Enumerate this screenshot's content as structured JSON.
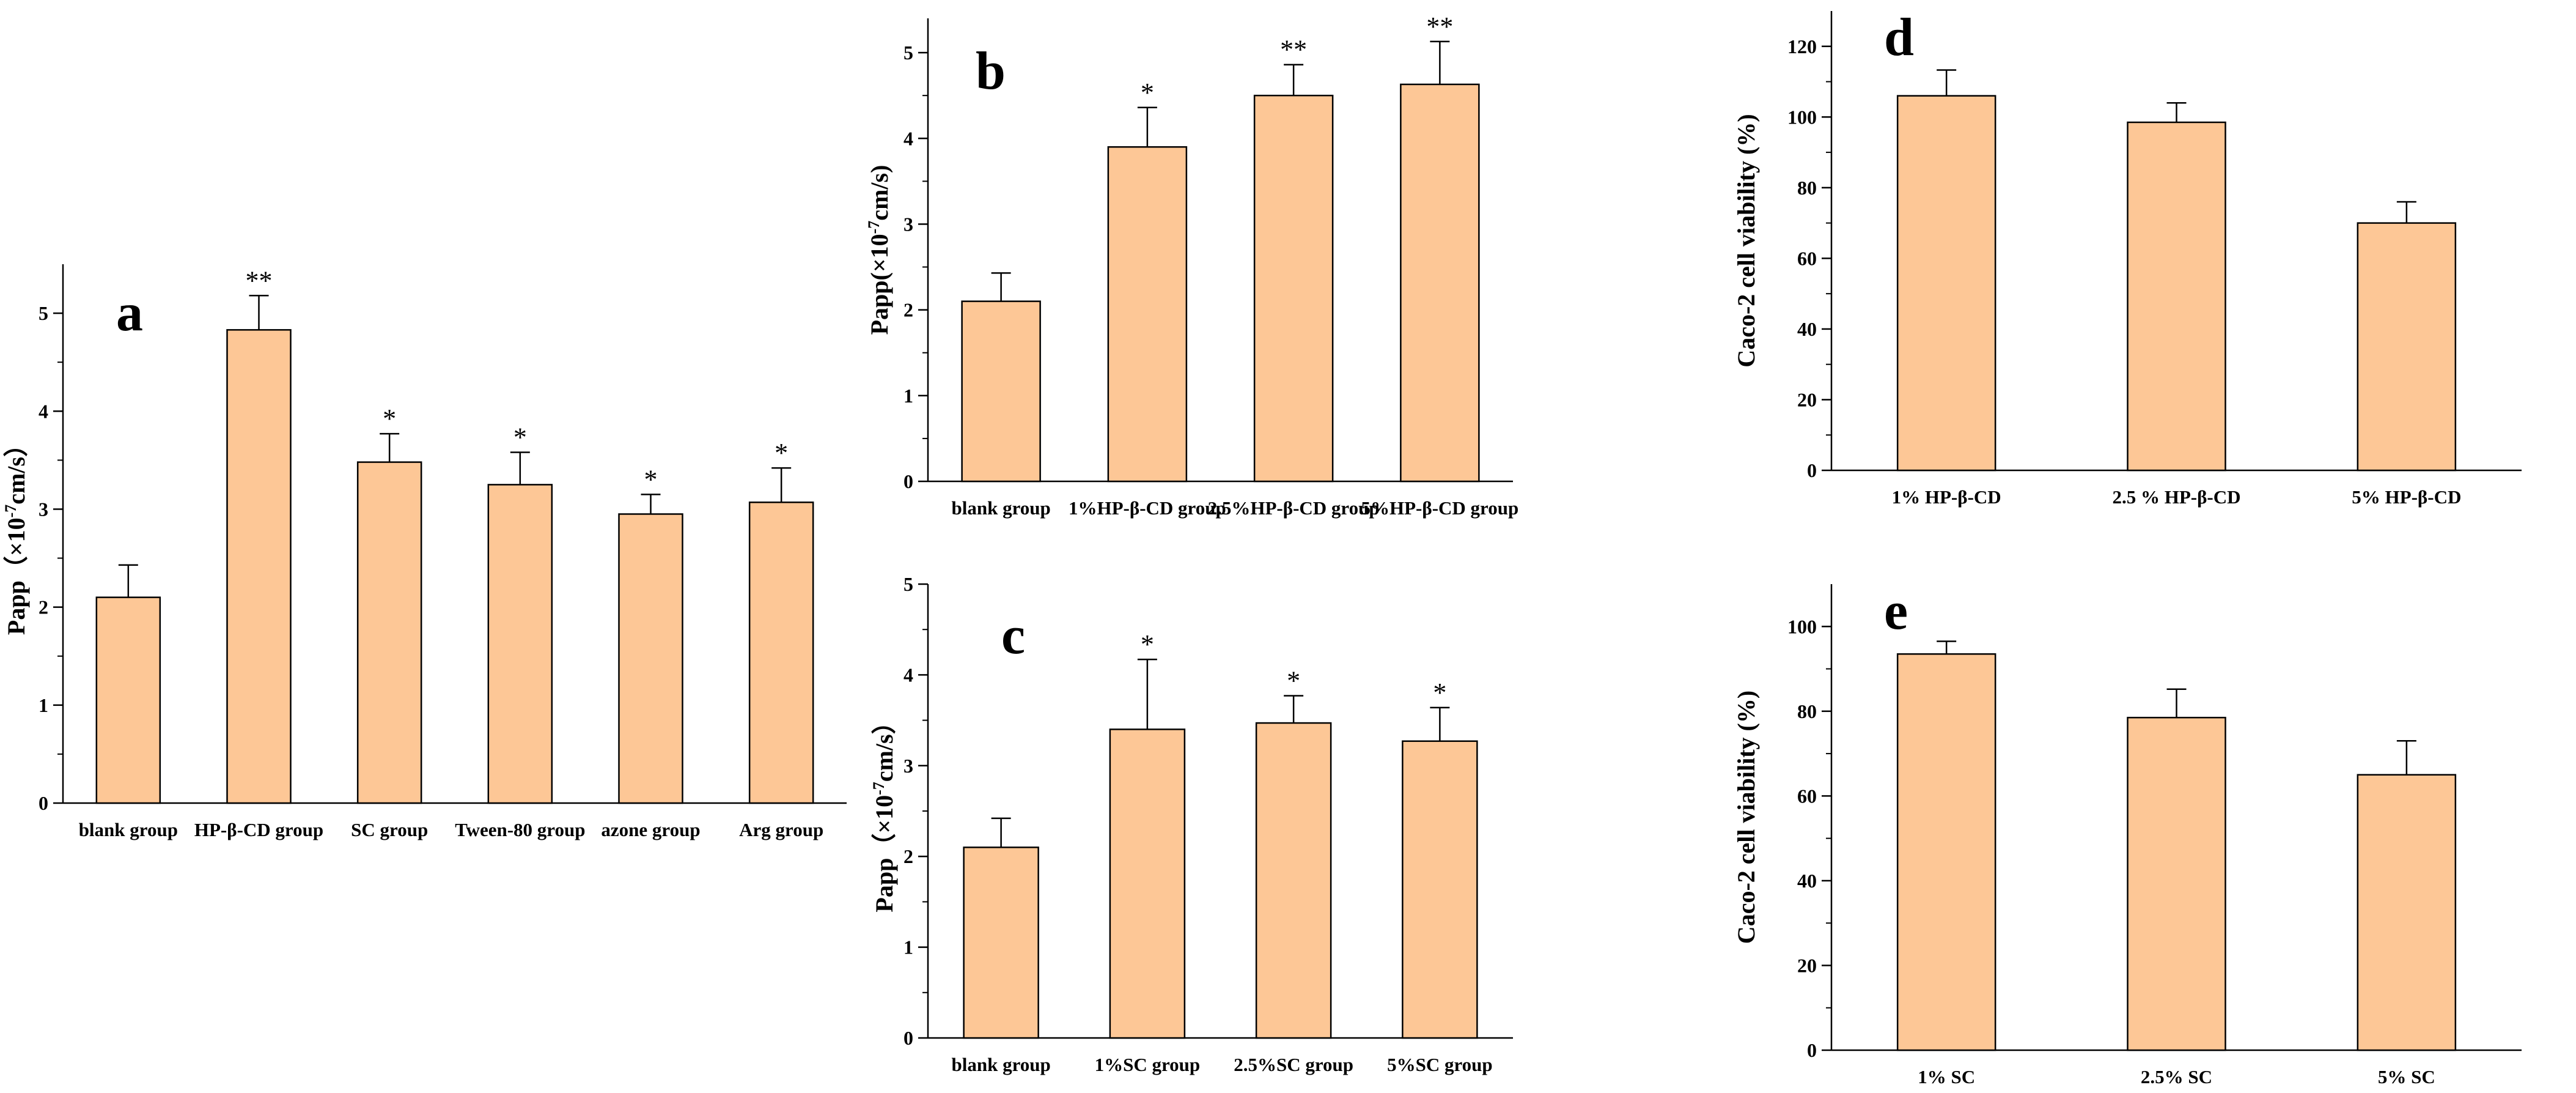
{
  "colors": {
    "bar_fill": "#FDC796",
    "bar_stroke": "#000000",
    "axis": "#000000"
  },
  "chart_data": [
    {
      "id": "a",
      "panel_letter": "a",
      "type": "bar",
      "ylabel": "Papp（×10-7cm/s）",
      "ylim": [
        0,
        5.5
      ],
      "yticks": [
        0,
        1,
        2,
        3,
        4,
        5
      ],
      "categories": [
        "blank group",
        "HP-β-CD group",
        "SC group",
        "Tween-80 group",
        "azone group",
        "Arg group"
      ],
      "values": [
        2.1,
        4.83,
        3.48,
        3.25,
        2.95,
        3.07
      ],
      "errors": [
        0.33,
        0.35,
        0.29,
        0.33,
        0.2,
        0.35
      ],
      "significance": [
        "",
        "**",
        "*",
        "*",
        "*",
        "*"
      ],
      "legend": "none",
      "grid": false
    },
    {
      "id": "b",
      "panel_letter": "b",
      "type": "bar",
      "ylabel": "Papp(×10-7cm/s)",
      "ylim": [
        0,
        5.4
      ],
      "yticks": [
        0,
        1,
        2,
        3,
        4,
        5
      ],
      "categories": [
        "blank group",
        "1%HP-β-CD group",
        "2.5%HP-β-CD group",
        "5%HP-β-CD group"
      ],
      "values": [
        2.1,
        3.9,
        4.5,
        4.63
      ],
      "errors": [
        0.33,
        0.46,
        0.36,
        0.5
      ],
      "significance": [
        "",
        "*",
        "**",
        "**"
      ],
      "legend": "none",
      "grid": false
    },
    {
      "id": "c",
      "panel_letter": "c",
      "type": "bar",
      "ylabel": "Papp（×10-7cm/s）",
      "ylim": [
        0,
        5
      ],
      "yticks": [
        0,
        1,
        2,
        3,
        4,
        5
      ],
      "categories": [
        "blank group",
        "1%SC group",
        "2.5%SC group",
        "5%SC group"
      ],
      "values": [
        2.1,
        3.4,
        3.47,
        3.27
      ],
      "errors": [
        0.32,
        0.77,
        0.3,
        0.37
      ],
      "significance": [
        "",
        "*",
        "*",
        "*"
      ],
      "legend": "none",
      "grid": false
    },
    {
      "id": "d",
      "panel_letter": "d",
      "type": "bar",
      "ylabel": "Caco-2 cell viability (%)",
      "ylim": [
        0,
        130
      ],
      "yticks": [
        0,
        20,
        40,
        60,
        80,
        100,
        120
      ],
      "categories": [
        "1% HP-β-CD",
        "2.5 % HP-β-CD",
        "5% HP-β-CD"
      ],
      "values": [
        106,
        98.5,
        70
      ],
      "errors": [
        7.3,
        5.5,
        6
      ],
      "significance": [
        "",
        "",
        ""
      ],
      "legend": "none",
      "grid": false
    },
    {
      "id": "e",
      "panel_letter": "e",
      "type": "bar",
      "ylabel": "Caco-2 cell viability (%)",
      "ylim": [
        0,
        110
      ],
      "yticks": [
        0,
        20,
        40,
        60,
        80,
        100
      ],
      "categories": [
        "1% SC",
        "2.5% SC",
        "5% SC"
      ],
      "values": [
        93.5,
        78.5,
        65
      ],
      "errors": [
        3,
        6.7,
        8
      ],
      "significance": [
        "",
        "",
        ""
      ],
      "legend": "none",
      "grid": false
    }
  ]
}
